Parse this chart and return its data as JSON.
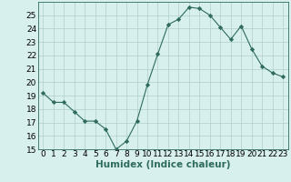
{
  "x": [
    0,
    1,
    2,
    3,
    4,
    5,
    6,
    7,
    8,
    9,
    10,
    11,
    12,
    13,
    14,
    15,
    16,
    17,
    18,
    19,
    20,
    21,
    22,
    23
  ],
  "y": [
    19.2,
    18.5,
    18.5,
    17.8,
    17.1,
    17.1,
    16.5,
    15.0,
    15.6,
    17.1,
    19.8,
    22.1,
    24.3,
    24.7,
    25.6,
    25.5,
    25.0,
    24.1,
    23.2,
    24.2,
    22.5,
    21.2,
    20.7,
    20.4
  ],
  "line_color": "#2e6b5e",
  "marker": "D",
  "marker_size": 2.2,
  "bg_color": "#d8f0ed",
  "grid_color": "#b0cec8",
  "xlabel": "Humidex (Indice chaleur)",
  "ylim": [
    15,
    26
  ],
  "xlim": [
    -0.5,
    23.5
  ],
  "yticks": [
    15,
    16,
    17,
    18,
    19,
    20,
    21,
    22,
    23,
    24,
    25
  ],
  "xticks": [
    0,
    1,
    2,
    3,
    4,
    5,
    6,
    7,
    8,
    9,
    10,
    11,
    12,
    13,
    14,
    15,
    16,
    17,
    18,
    19,
    20,
    21,
    22,
    23
  ],
  "tick_label_fontsize": 6.5,
  "xlabel_fontsize": 7.5,
  "xlabel_fontweight": "bold"
}
